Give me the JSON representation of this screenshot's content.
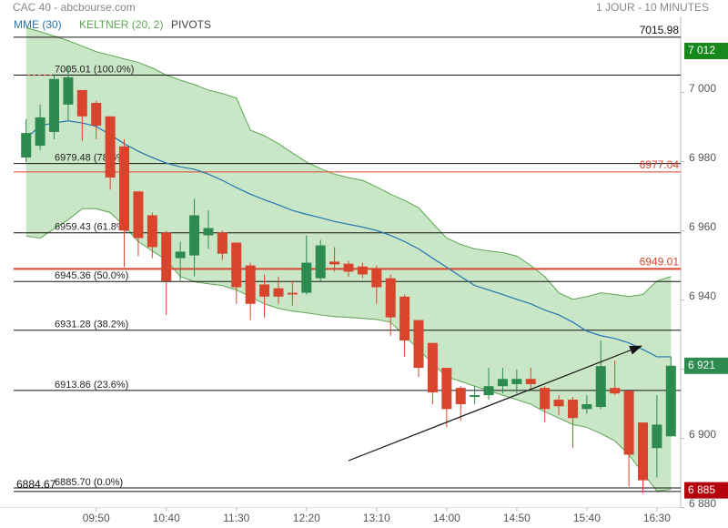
{
  "header": {
    "title": "CAC 40 - abcbourse.com",
    "timeframe": "1 JOUR - 10 MINUTES"
  },
  "chart_data": {
    "type": "candlestick",
    "categories": [
      null,
      null,
      null,
      null,
      null,
      "09:50",
      null,
      null,
      null,
      null,
      "10:40",
      null,
      null,
      null,
      null,
      "11:30",
      null,
      null,
      null,
      null,
      "12:20",
      null,
      null,
      null,
      null,
      "13:10",
      null,
      null,
      null,
      null,
      "14:00",
      null,
      null,
      null,
      null,
      "14:50",
      null,
      null,
      null,
      null,
      "15:40",
      null,
      null,
      null,
      null,
      "16:30",
      null
    ],
    "open": [
      6981.2,
      6984.6,
      6988.6,
      6996.5,
      7000.7,
      6997.0,
      6993.1,
      6984.4,
      6971.4,
      6964.5,
      6959.5,
      6952.1,
      6952.9,
      6958.7,
      6959.5,
      6956.6,
      6950.0,
      6944.5,
      6943.4,
      6942.1,
      6942.1,
      6946.3,
      6951.1,
      6950.5,
      6949.7,
      6949.0,
      6946.3,
      6941.0,
      6934.2,
      6927.6,
      6920.4,
      6914.6,
      6912.0,
      6912.5,
      6915.1,
      6915.7,
      6917.2,
      6914.6,
      6911.2,
      6911.2,
      6908.5,
      6909.1,
      6914.6,
      6913.8,
      6904.6,
      6897.2,
      6900.6
    ],
    "high": [
      6992.3,
      6996.5,
      7005.0,
      7007.6,
      7000.7,
      6997.6,
      6993.1,
      6986.5,
      6971.4,
      6965.3,
      6960.0,
      6956.9,
      6969.3,
      6965.9,
      6960.0,
      6956.6,
      6950.8,
      6947.4,
      6946.8,
      6945.5,
      6958.7,
      6957.4,
      6955.3,
      6951.3,
      6950.8,
      6950.0,
      6947.4,
      6941.6,
      6934.2,
      6927.6,
      6920.4,
      6915.1,
      6915.1,
      6920.4,
      6920.4,
      6919.9,
      6920.4,
      6915.1,
      6912.5,
      6912.0,
      6912.5,
      6928.3,
      6922.5,
      6913.8,
      6904.6,
      6912.5,
      6923.6
    ],
    "low": [
      6979.9,
      6983.3,
      6986.5,
      6991.8,
      6985.9,
      6986.5,
      6971.9,
      6949.5,
      6952.7,
      6952.1,
      6935.7,
      6945.5,
      6946.8,
      6954.8,
      6951.6,
      6938.9,
      6934.2,
      6934.9,
      6938.9,
      6938.4,
      6941.6,
      6945.5,
      6948.2,
      6946.8,
      6946.3,
      6938.9,
      6929.7,
      6923.6,
      6917.8,
      6909.9,
      6903.2,
      6905.1,
      6909.9,
      6911.2,
      6913.0,
      6913.0,
      6913.8,
      6904.6,
      6906.7,
      6897.2,
      6907.2,
      6908.5,
      6912.5,
      6886.1,
      6884.2,
      6888.7,
      6900.6
    ],
    "close": [
      6988.3,
      6992.8,
      7003.9,
      7004.4,
      6993.1,
      6990.4,
      6975.4,
      6960.1,
      6957.9,
      6955.3,
      6945.5,
      6954.0,
      6964.5,
      6960.8,
      6953.4,
      6943.7,
      6938.9,
      6941.0,
      6941.0,
      6941.6,
      6950.8,
      6955.8,
      6950.3,
      6948.2,
      6947.4,
      6943.7,
      6935.0,
      6928.3,
      6920.4,
      6913.3,
      6908.5,
      6909.9,
      6912.5,
      6915.1,
      6917.2,
      6917.2,
      6915.7,
      6908.5,
      6909.3,
      6905.9,
      6909.9,
      6920.9,
      6913.0,
      6895.3,
      6887.9,
      6904.0,
      6921.0
    ],
    "up_color": "#2e8b4f",
    "down_color": "#d9442c",
    "series": [
      {
        "name": "MME (30)",
        "color": "#2474b0",
        "values": [
          6986.7,
          6990.4,
          6991.2,
          6991.8,
          6991.2,
          6990.2,
          6987.8,
          6985.2,
          6983.0,
          6981.2,
          6979.6,
          6978.5,
          6977.8,
          6976.4,
          6974.6,
          6972.5,
          6970.6,
          6969.0,
          6967.5,
          6965.9,
          6964.8,
          6963.8,
          6962.7,
          6961.9,
          6961.1,
          6960.1,
          6958.7,
          6956.9,
          6954.8,
          6952.1,
          6949.5,
          6946.8,
          6944.2,
          6942.9,
          6941.6,
          6940.2,
          6938.9,
          6937.1,
          6935.7,
          6933.6,
          6931.0,
          6929.7,
          6928.9,
          6927.6,
          6925.7,
          6923.6,
          6923.6
        ]
      }
    ],
    "keltner": {
      "name": "KELTNER (20, 2)",
      "color": "#5da552",
      "fill": "#c9e6c6",
      "upper": [
        7018.7,
        7017.6,
        7016.3,
        7015.0,
        7013.4,
        7011.8,
        7010.8,
        7009.7,
        7008.7,
        7007.1,
        7005.0,
        7003.6,
        7002.3,
        7000.7,
        6999.7,
        6998.4,
        6989.1,
        6987.5,
        6985.2,
        6982.5,
        6979.9,
        6978.0,
        6976.4,
        6975.4,
        6974.6,
        6972.7,
        6970.6,
        6968.8,
        6966.7,
        6962.2,
        6957.9,
        6956.1,
        6954.8,
        6954.2,
        6953.7,
        6952.7,
        6950.0,
        6946.8,
        6942.1,
        6940.2,
        6941.0,
        6942.1,
        6941.6,
        6941.0,
        6941.6,
        6945.5,
        6946.8
      ],
      "lower": [
        6958.5,
        6957.9,
        6960.6,
        6963.2,
        6966.4,
        6966.4,
        6965.3,
        6961.4,
        6956.9,
        6954.2,
        6951.6,
        6946.8,
        6945.3,
        6944.7,
        6944.2,
        6942.9,
        6941.0,
        6938.9,
        6937.6,
        6936.8,
        6936.3,
        6935.7,
        6935.2,
        6935.0,
        6934.7,
        6934.4,
        6933.6,
        6929.7,
        6925.7,
        6921.7,
        6917.8,
        6916.5,
        6915.1,
        6913.8,
        6912.5,
        6911.2,
        6909.9,
        6907.7,
        6905.9,
        6904.0,
        6903.2,
        6901.4,
        6899.3,
        6895.3,
        6890.0,
        6884.8,
        6885.3
      ]
    },
    "pivots": {
      "name": "PIVOTS",
      "color": "#111111",
      "levels": [
        {
          "value": 7005.01,
          "label": "7005.01 (100.0%)"
        },
        {
          "value": 6979.48,
          "label": "6979.48 (78.6%)"
        },
        {
          "value": 6959.43,
          "label": "6959.43 (61.8%)"
        },
        {
          "value": 6945.36,
          "label": "6945.36 (50.0%)"
        },
        {
          "value": 6931.28,
          "label": "6931.28 (38.2%)"
        },
        {
          "value": 6913.86,
          "label": "6913.86 (23.6%)"
        },
        {
          "value": 6885.7,
          "label": "6885.70 (0.0%)"
        }
      ]
    },
    "lines": [
      {
        "value": 7015.98,
        "color": "#111111",
        "width": 1,
        "side": "right"
      },
      {
        "value": 6884.67,
        "color": "#111111",
        "width": 1,
        "side": "left"
      },
      {
        "value": 6977.04,
        "color": "#d9442c",
        "width": 1,
        "side": "right"
      },
      {
        "value": 6949.01,
        "color": "#d9442c",
        "width": 2,
        "side": "right"
      }
    ],
    "price_tags": [
      {
        "value": 7012,
        "label": "7 012",
        "color": "#16881c"
      },
      {
        "value": 6921,
        "label": "6 921",
        "color": "#2e8b4f"
      },
      {
        "value": 6885,
        "label": "6 885",
        "color": "#b3000b"
      }
    ],
    "ylim": [
      6880,
      7022
    ],
    "yticks": [
      {
        "value": 6880,
        "label": "6 880"
      },
      {
        "value": 6900,
        "label": "6 900"
      },
      {
        "value": 6920,
        "label": "6 920"
      },
      {
        "value": 6940,
        "label": "6 940"
      },
      {
        "value": 6960,
        "label": "6 960"
      },
      {
        "value": 6980,
        "label": "6 980"
      },
      {
        "value": 7000,
        "label": "7 000"
      }
    ]
  }
}
